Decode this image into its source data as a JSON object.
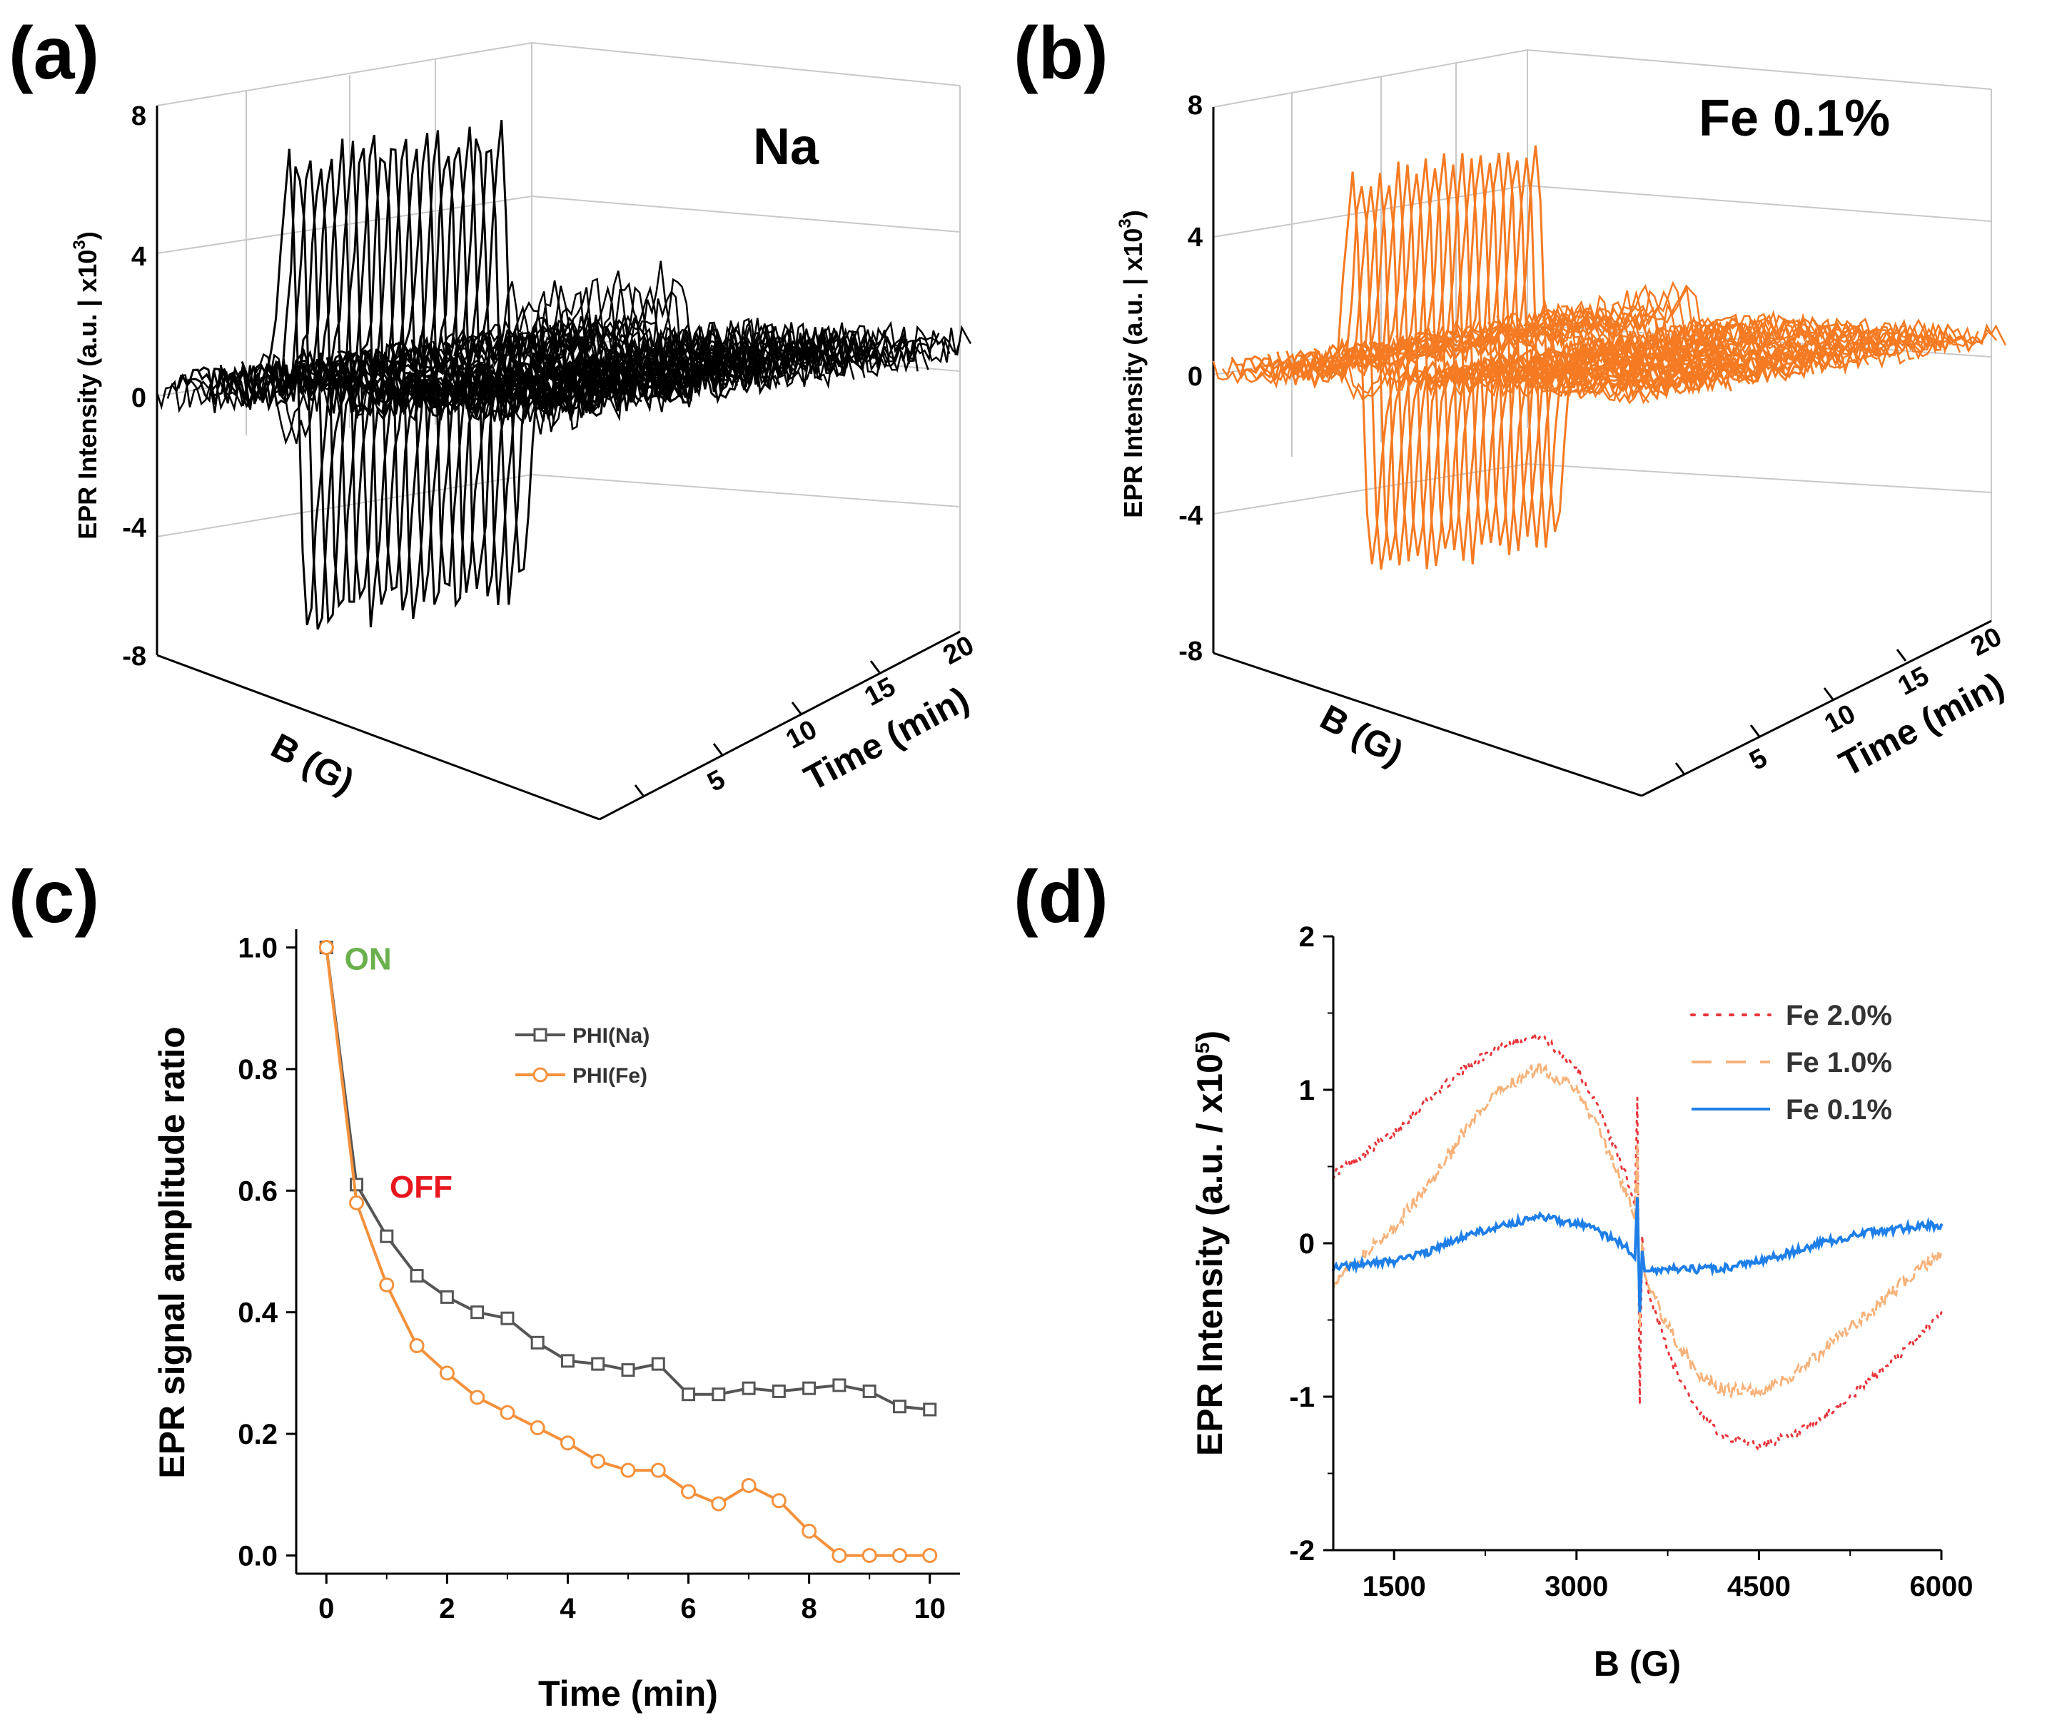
{
  "colors": {
    "na": "#000000",
    "fe_3d": "#f57a22",
    "phi_na": "#555555",
    "phi_fe": "#f5913c",
    "fe20": "#e8343a",
    "fe10": "#f7b27a",
    "fe01": "#1f7fe8",
    "on": "#6ab04c",
    "off": "#e8161e"
  },
  "chart_data": [
    {
      "panel": "(a)",
      "type": "3d-waterfall",
      "annotation": "Na",
      "zlabel": "EPR Intensity (a.u. | x10",
      "zlabel_sup": "3",
      "zlabel_end": ")",
      "zticks": [
        "8",
        "4",
        "0",
        "-4",
        "-8"
      ],
      "zlim": [
        -8,
        8
      ],
      "xlabel": "B (G)",
      "ylabel": "Time (min)",
      "yticks": [
        "5",
        "10",
        "15",
        "20"
      ],
      "n_traces": 40,
      "on_segment": [
        2,
        22
      ],
      "on_peak": 7,
      "off_peak": 1.8,
      "baseline_noise": 0.6
    },
    {
      "panel": "(b)",
      "type": "3d-waterfall",
      "annotation": "Fe 0.1%",
      "zlabel": "EPR Intensity (a.u. | x10",
      "zlabel_sup": "3",
      "zlabel_end": ")",
      "zticks": [
        "8",
        "4",
        "0",
        "-4",
        "-8"
      ],
      "zlim": [
        -8,
        8
      ],
      "xlabel": "B (G)",
      "ylabel": "Time (min)",
      "yticks": [
        "5",
        "10",
        "15",
        "20"
      ],
      "n_traces": 40,
      "on_segment": [
        2,
        22
      ],
      "on_peak": 5.8,
      "off_peak": 0.9,
      "baseline_noise": 0.35
    },
    {
      "panel": "(c)",
      "type": "line",
      "xlabel": "Time (min)",
      "ylabel": "EPR signal amplitude ratio",
      "xlim": [
        -0.5,
        10.5
      ],
      "ylim": [
        -0.03,
        1.03
      ],
      "xticks": [
        "0",
        "2",
        "4",
        "6",
        "8",
        "10"
      ],
      "yticks": [
        "0.0",
        "0.2",
        "0.4",
        "0.6",
        "0.8",
        "1.0"
      ],
      "annotations": [
        {
          "text": "ON",
          "x": 0.3,
          "y": 0.985
        },
        {
          "text": "OFF",
          "x": 1.05,
          "y": 0.61
        }
      ],
      "series": [
        {
          "name": "PHI(Na)",
          "marker": "square",
          "x": [
            0,
            0.5,
            1,
            1.5,
            2,
            2.5,
            3,
            3.5,
            4,
            4.5,
            5,
            5.5,
            6,
            6.5,
            7,
            7.5,
            8,
            8.5,
            9,
            9.5,
            10
          ],
          "y": [
            1.0,
            0.61,
            0.525,
            0.46,
            0.425,
            0.4,
            0.39,
            0.35,
            0.32,
            0.315,
            0.305,
            0.315,
            0.265,
            0.265,
            0.275,
            0.27,
            0.275,
            0.28,
            0.27,
            0.245,
            0.24
          ]
        },
        {
          "name": "PHI(Fe)",
          "marker": "circle",
          "x": [
            0,
            0.5,
            1,
            1.5,
            2,
            2.5,
            3,
            3.5,
            4,
            4.5,
            5,
            5.5,
            6,
            6.5,
            7,
            7.5,
            8,
            8.5,
            9,
            9.5,
            10
          ],
          "y": [
            1.0,
            0.58,
            0.445,
            0.345,
            0.3,
            0.26,
            0.235,
            0.21,
            0.185,
            0.155,
            0.14,
            0.14,
            0.105,
            0.085,
            0.115,
            0.09,
            0.04,
            0.0,
            0.0,
            0.0,
            0.0
          ]
        }
      ]
    },
    {
      "panel": "(d)",
      "type": "line",
      "xlabel": "B (G)",
      "ylabel": "EPR Intensity (a.u. / x10",
      "ylabel_sup": "5",
      "ylabel_end": ")",
      "xlim": [
        1000,
        6000
      ],
      "ylim": [
        -2,
        2
      ],
      "xticks": [
        "1500",
        "3000",
        "4500",
        "6000"
      ],
      "yticks": [
        "-2",
        "-1",
        "0",
        "1",
        "2"
      ],
      "series": [
        {
          "name": "Fe 2.0%",
          "style": "dotted",
          "x": [
            1000,
            1200,
            1500,
            1800,
            2100,
            2400,
            2700,
            3000,
            3200,
            3400,
            3480,
            3500,
            3520,
            3540,
            3560,
            3600,
            3800,
            4000,
            4200,
            4500,
            4800,
            5100,
            5400,
            5700,
            6000
          ],
          "y": [
            0.45,
            0.55,
            0.72,
            0.95,
            1.15,
            1.3,
            1.35,
            1.15,
            0.85,
            0.45,
            0.25,
            0.95,
            -1.05,
            0.05,
            -0.2,
            -0.35,
            -0.8,
            -1.1,
            -1.25,
            -1.32,
            -1.25,
            -1.1,
            -0.9,
            -0.7,
            -0.45
          ]
        },
        {
          "name": "Fe 1.0%",
          "style": "dashed",
          "x": [
            1000,
            1200,
            1500,
            1800,
            2100,
            2400,
            2700,
            3000,
            3200,
            3400,
            3480,
            3500,
            3520,
            3540,
            3560,
            3600,
            3800,
            4000,
            4200,
            4500,
            4800,
            5100,
            5400,
            5700,
            6000
          ],
          "y": [
            -0.25,
            -0.12,
            0.1,
            0.4,
            0.75,
            1.02,
            1.15,
            1.0,
            0.72,
            0.35,
            0.15,
            0.65,
            -0.55,
            0.0,
            -0.2,
            -0.3,
            -0.62,
            -0.85,
            -0.95,
            -0.97,
            -0.85,
            -0.65,
            -0.45,
            -0.25,
            -0.05
          ]
        },
        {
          "name": "Fe 0.1%",
          "style": "solid",
          "x": [
            1000,
            1200,
            1500,
            1800,
            2100,
            2400,
            2700,
            3000,
            3200,
            3400,
            3480,
            3500,
            3520,
            3540,
            3560,
            3600,
            3800,
            4000,
            4200,
            4500,
            4800,
            5100,
            5400,
            5700,
            6000
          ],
          "y": [
            -0.15,
            -0.14,
            -0.12,
            -0.05,
            0.05,
            0.12,
            0.17,
            0.13,
            0.07,
            -0.02,
            -0.1,
            0.3,
            -0.45,
            -0.05,
            -0.18,
            -0.18,
            -0.17,
            -0.17,
            -0.16,
            -0.12,
            -0.05,
            0.02,
            0.07,
            0.1,
            0.12
          ]
        }
      ]
    }
  ]
}
